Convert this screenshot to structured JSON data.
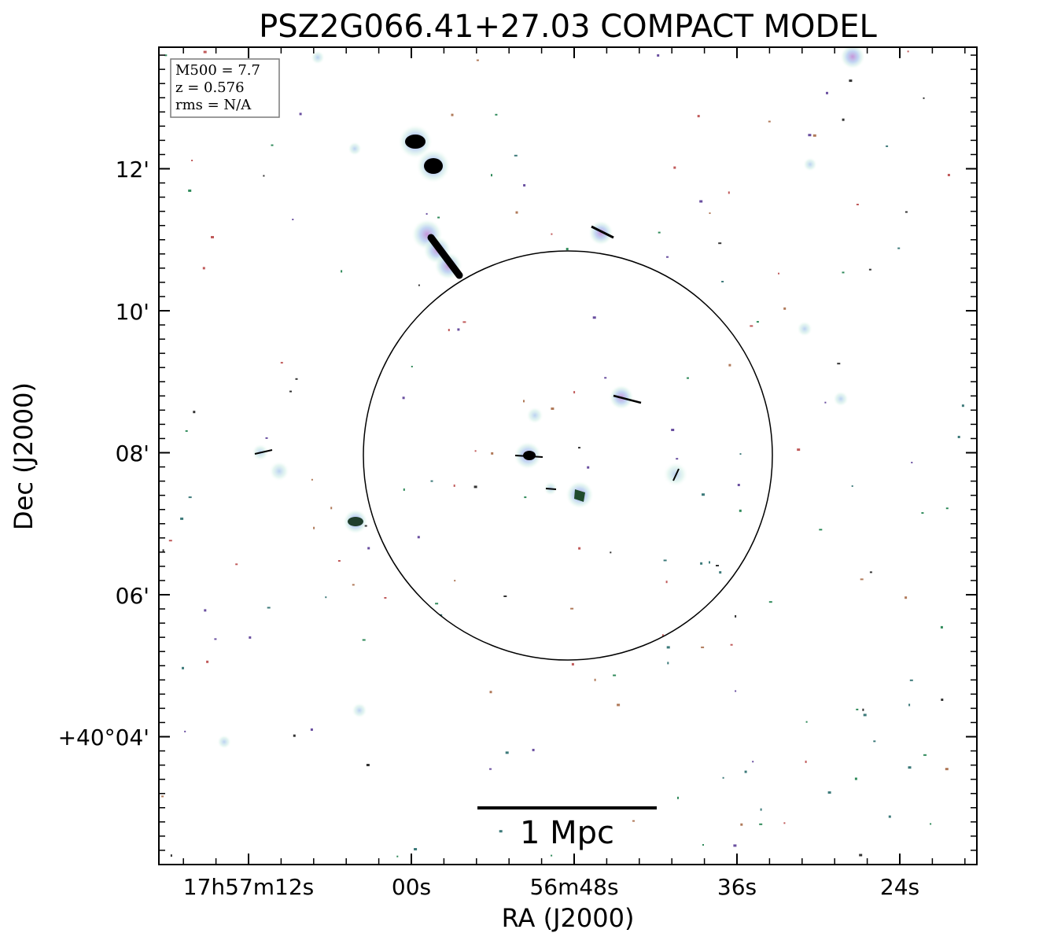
{
  "title": "PSZ2G066.41+27.03 COMPACT MODEL",
  "x_axis": {
    "label": "RA (J2000)",
    "ticks": [
      "17h57m12s",
      "00s",
      "56m48s",
      "36s",
      "24s"
    ]
  },
  "y_axis": {
    "label": "Dec (J2000)",
    "ticks": [
      "12'",
      "10'",
      "08'",
      "06'",
      "+40°04'"
    ]
  },
  "info_box": {
    "lines": [
      "M500 = 7.7",
      "z = 0.576",
      "rms = N/A"
    ]
  },
  "scale_bar": {
    "label": "1 Mpc"
  },
  "colors": {
    "source_core": "#000000",
    "halo_pink": "#d9a0d8",
    "halo_blue": "#a9c4ee",
    "halo_cyan": "#cdeee4",
    "pixel_red": "#c05a5a",
    "pixel_green": "#2f8a5a"
  }
}
